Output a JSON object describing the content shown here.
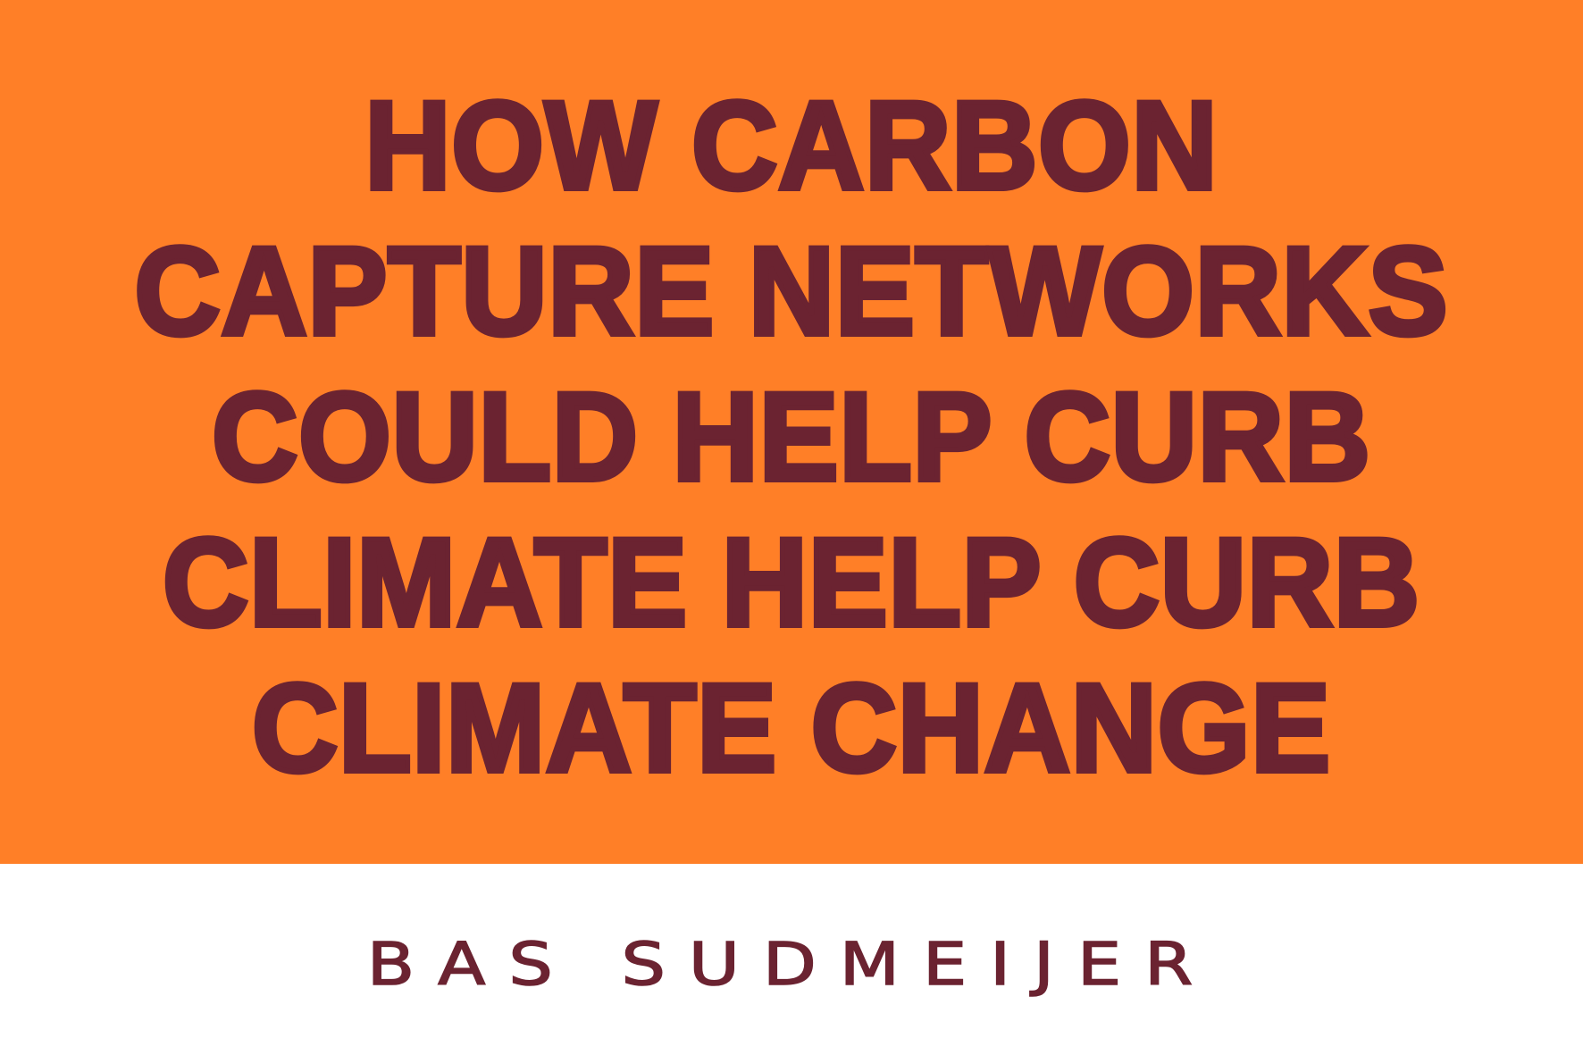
{
  "headline": {
    "lines": [
      "HOW CARBON",
      "CAPTURE NETWORKS",
      "COULD HELP CURB",
      "CLIMATE HELP CURB",
      "CLIMATE CHANGE"
    ]
  },
  "author": "BAS SUDMEIJER",
  "colors": {
    "banner_background": "#ff7f27",
    "text": "#6b2331",
    "footer_background": "#ffffff"
  }
}
